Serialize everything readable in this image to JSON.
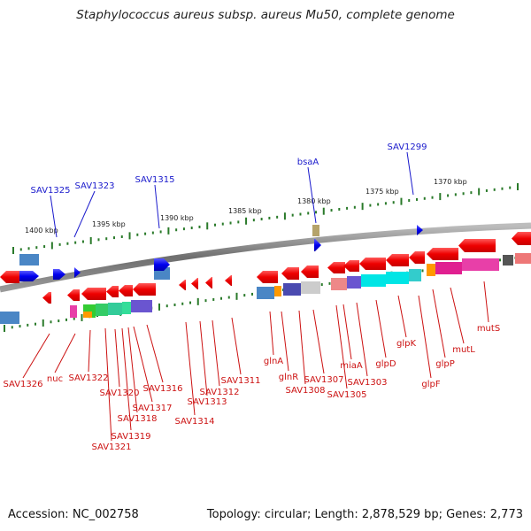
{
  "title": "Staphylococcus aureus subsp. aureus Mu50, complete genome",
  "footer": {
    "accession": "Accession: NC_002758",
    "topology": "Topology: circular; Length: 2,878,529 bp; Genes: 2,773"
  },
  "ticks": [
    "1400 kbp",
    "1395 kbp",
    "1390 kbp",
    "1385 kbp",
    "1380 kbp",
    "1375 kbp",
    "1370 kbp"
  ],
  "colors": {
    "backbone": "#777777",
    "forward_label": "#1a1acc",
    "reverse_label": "#cc1111",
    "tick": "#2a7a2a"
  },
  "labels_forward": [
    "SAV1325",
    "SAV1323",
    "SAV1315",
    "bsaA",
    "SAV1299"
  ],
  "labels_reverse": [
    "SAV1326",
    "nuc",
    "SAV1322",
    "SAV1320",
    "SAV1321",
    "SAV1319",
    "SAV1318",
    "SAV1317",
    "SAV1316",
    "SAV1314",
    "SAV1313",
    "SAV1312",
    "SAV1311",
    "glnA",
    "glnR",
    "SAV1308",
    "SAV1307",
    "SAV1305",
    "miaA",
    "SAV1303",
    "glpD",
    "glpK",
    "glpF",
    "glpP",
    "mutL",
    "mutS"
  ]
}
